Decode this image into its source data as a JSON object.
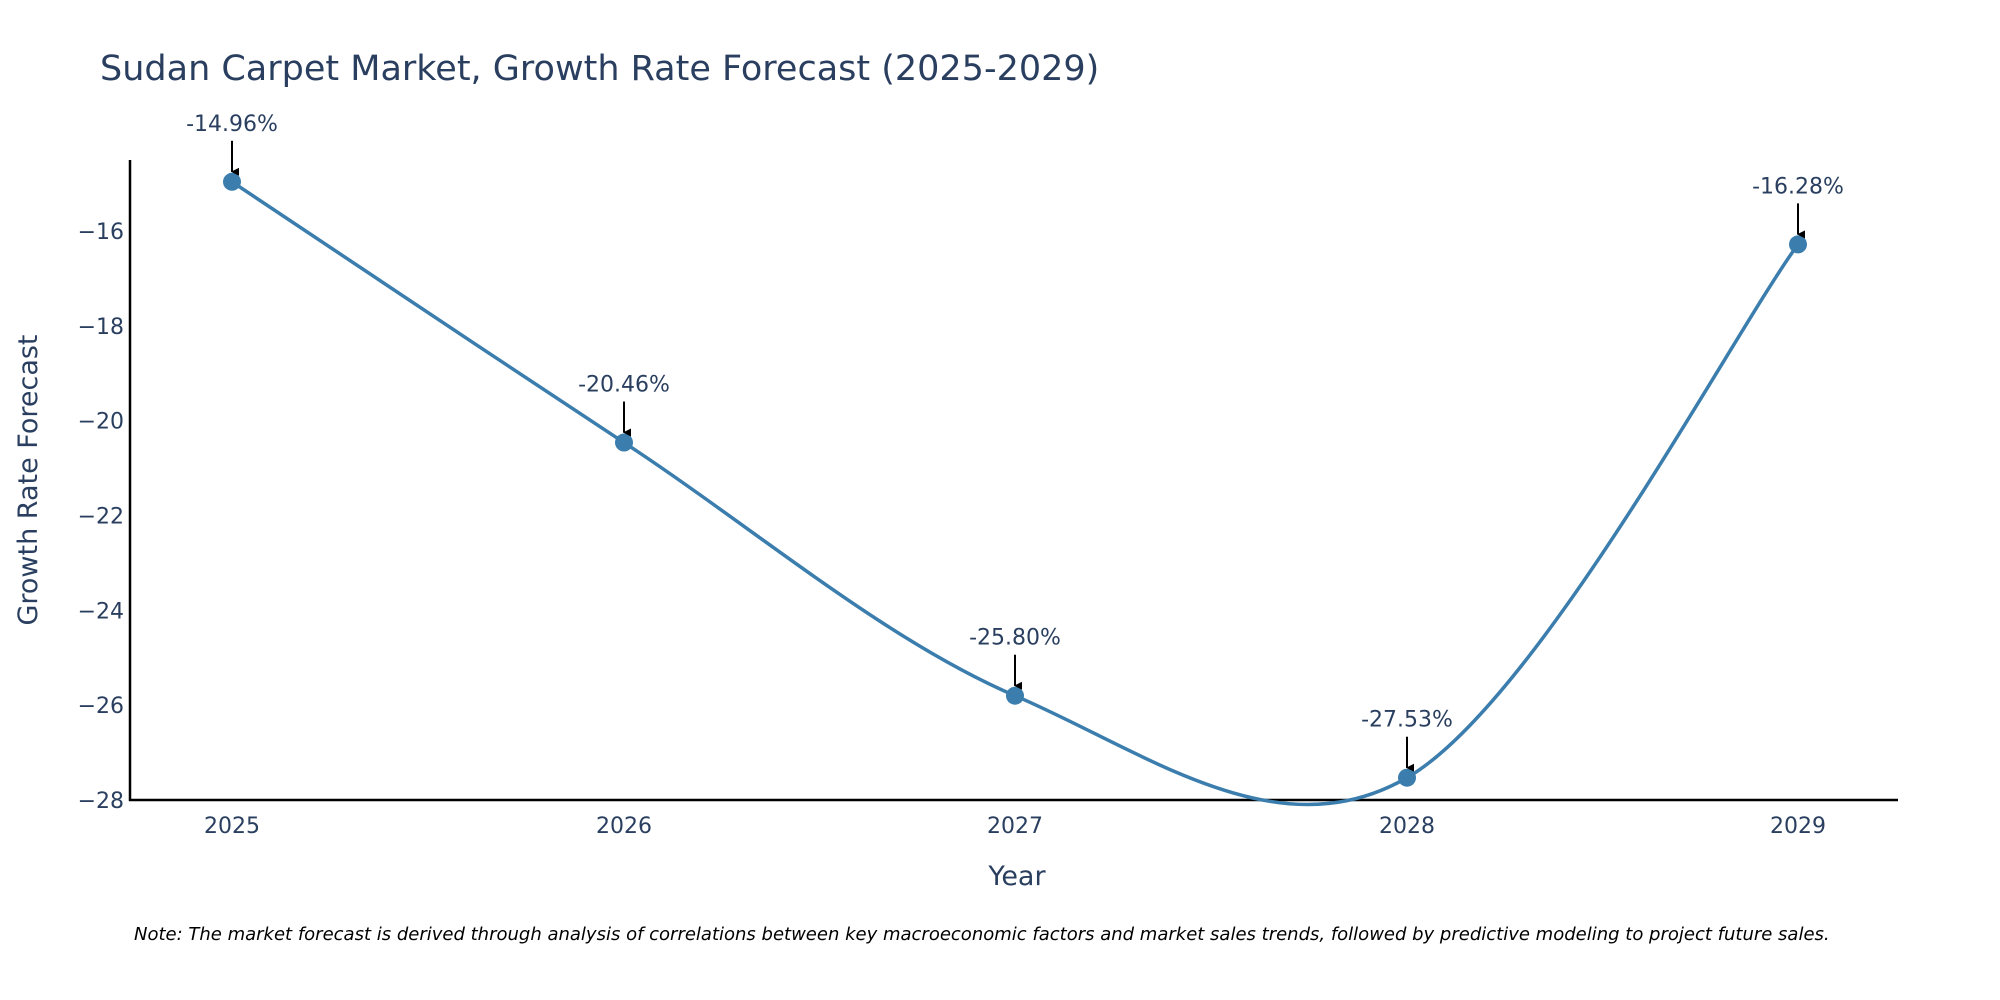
{
  "colors": {
    "line": "#3b7dad",
    "marker": "#3b7dad",
    "axis": "#000000",
    "text": "#2a3f5f",
    "arrow": "#000000"
  },
  "chart_data": {
    "type": "line",
    "title": "Sudan Carpet Market, Growth Rate Forecast (2025-2029)",
    "xlabel": "Year",
    "ylabel": "Growth Rate Forecast",
    "x": [
      "2025",
      "2026",
      "2027",
      "2028",
      "2029"
    ],
    "series": [
      {
        "name": "Growth Rate Forecast",
        "values": [
          -14.96,
          -20.46,
          -25.8,
          -27.53,
          -16.28
        ]
      }
    ],
    "data_labels": [
      "-14.96%",
      "-20.46%",
      "-25.80%",
      "-27.53%",
      "-16.28%"
    ],
    "y_ticks": [
      -16,
      -18,
      -20,
      -22,
      -24,
      -26,
      -28
    ],
    "ylim": [
      -28,
      -14.5
    ],
    "grid": false,
    "line_shape": "spline"
  },
  "note": "Note: The market forecast is derived through analysis of correlations between key macroeconomic factors and market sales trends, followed by predictive modeling to project future sales."
}
